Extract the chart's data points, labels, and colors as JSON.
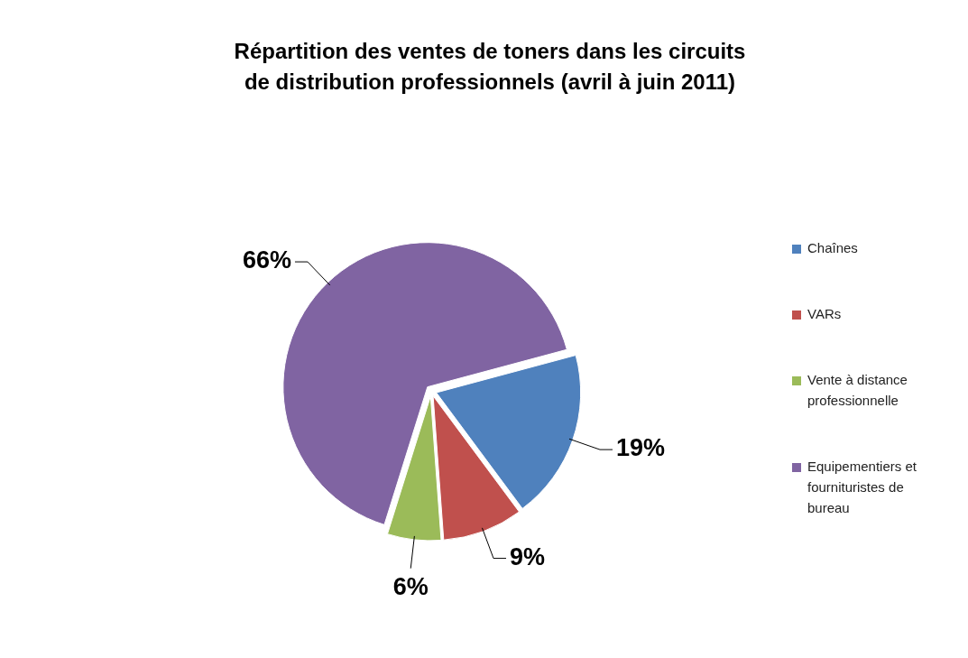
{
  "chart_data": {
    "type": "pie",
    "title": "Répartition des ventes de toners dans les circuits de distribution professionnels (avril à juin 2011)",
    "categories": [
      "Chaînes",
      "VARs",
      "Vente à distance professionnelle",
      "Equipementiers et fournituristes de bureau"
    ],
    "values": [
      19,
      9,
      6,
      66
    ],
    "colors": [
      "#4f81bd",
      "#c0504d",
      "#9bbb59",
      "#8064a2"
    ],
    "value_labels": [
      "19%",
      "9%",
      "6%",
      "66%"
    ],
    "legend": "right"
  }
}
